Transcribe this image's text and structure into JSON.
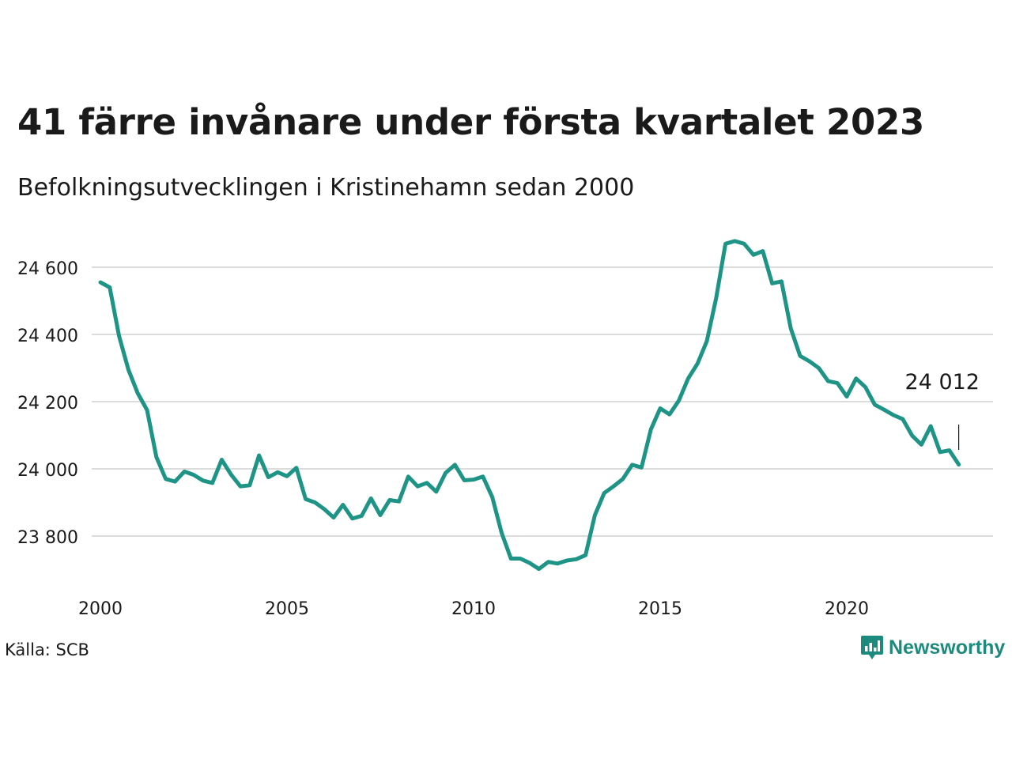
{
  "title": "41 färre invånare under första kvartalet 2023",
  "subtitle": "Befolkningsutvecklingen i Kristinehamn sedan 2000",
  "source": "Källa: SCB",
  "brand": {
    "name": "Newsworthy",
    "icon": "newsworthy-logo-icon",
    "color": "#1c8a7d"
  },
  "colors": {
    "line": "#1e9486",
    "grid": "#dcdcdc",
    "text": "#1a1a1a"
  },
  "chart_data": {
    "type": "line",
    "x_unit": "quarter",
    "start": "2000 Q1",
    "end": "2023 Q1",
    "xticks": [
      2000,
      2005,
      2010,
      2015,
      2020
    ],
    "xtick_labels": [
      "2000",
      "2005",
      "2010",
      "2015",
      "2020"
    ],
    "yticks": [
      23800,
      24000,
      24200,
      24400,
      24600
    ],
    "ytick_labels": [
      "23 800",
      "24 000",
      "24 200",
      "24 400",
      "24 600"
    ],
    "ylim": [
      23700,
      24700
    ],
    "grid": "horizontal",
    "series": [
      {
        "values": [
          24555,
          24540,
          24395,
          24295,
          24225,
          24175,
          24035,
          23970,
          23962,
          23992,
          23982,
          23965,
          23958,
          24027,
          23983,
          23948,
          23951,
          24040,
          23975,
          23990,
          23978,
          24003,
          23910,
          23900,
          23880,
          23855,
          23893,
          23852,
          23860,
          23912,
          23862,
          23907,
          23903,
          23977,
          23948,
          23958,
          23932,
          23988,
          24012,
          23966,
          23968,
          23977,
          23916,
          23810,
          23733,
          23733,
          23720,
          23702,
          23723,
          23718,
          23727,
          23731,
          23743,
          23862,
          23928,
          23948,
          23970,
          24012,
          24004,
          24117,
          24180,
          24162,
          24203,
          24269,
          24313,
          24380,
          24508,
          24670,
          24678,
          24670,
          24637,
          24648,
          24552,
          24558,
          24418,
          24336,
          24320,
          24300,
          24261,
          24255,
          24215,
          24269,
          24243,
          24191,
          24176,
          24160,
          24148,
          24099,
          24072,
          24127,
          24050,
          24055,
          24013
        ]
      }
    ],
    "annotation": {
      "label": "24 012",
      "value": 24012
    }
  }
}
